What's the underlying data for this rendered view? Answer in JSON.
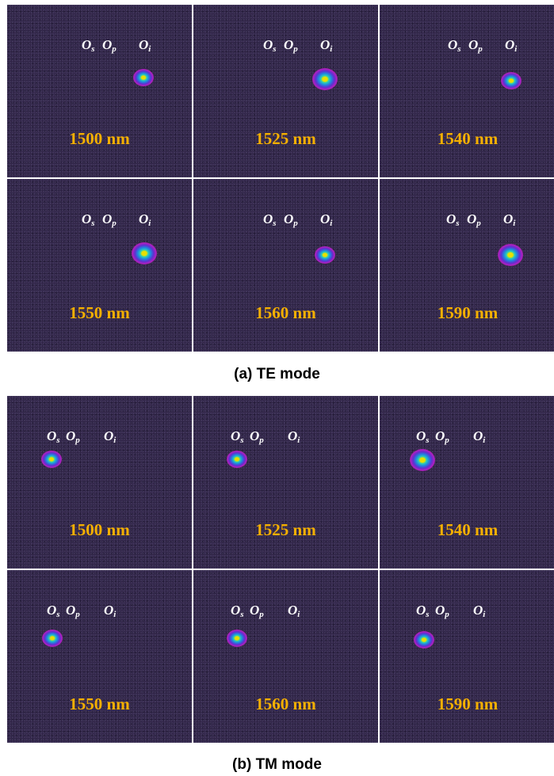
{
  "orders": {
    "s": "s",
    "p": "p",
    "i": "i",
    "letter": "O"
  },
  "panel_a": {
    "caption": "(a) TE mode",
    "tiles": [
      {
        "wavelength": "1500 nm"
      },
      {
        "wavelength": "1525 nm"
      },
      {
        "wavelength": "1540 nm"
      },
      {
        "wavelength": "1550 nm"
      },
      {
        "wavelength": "1560 nm"
      },
      {
        "wavelength": "1590 nm"
      }
    ]
  },
  "panel_b": {
    "caption": "(b) TM mode",
    "tiles": [
      {
        "wavelength": "1500 nm"
      },
      {
        "wavelength": "1525 nm"
      },
      {
        "wavelength": "1540 nm"
      },
      {
        "wavelength": "1550 nm"
      },
      {
        "wavelength": "1560 nm"
      },
      {
        "wavelength": "1590 nm"
      }
    ]
  },
  "colors": {
    "label": "#f5b000",
    "background": "#2e2244",
    "order_text": "#ffffff"
  }
}
